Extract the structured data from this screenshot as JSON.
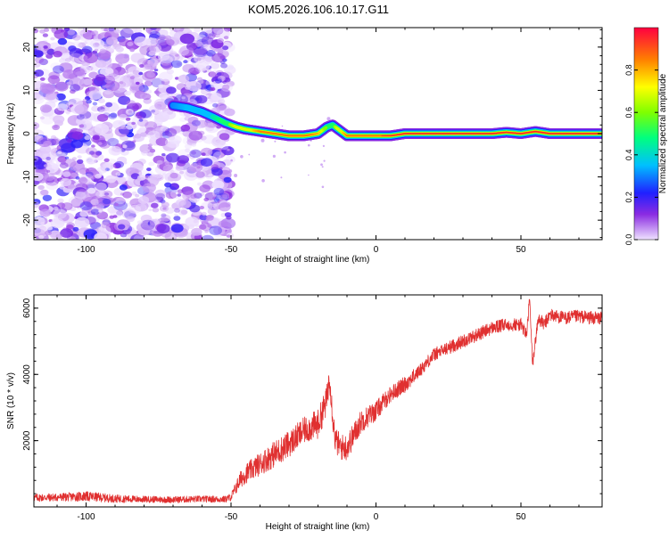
{
  "page_title": "KOM5.2026.106.10.17.G11",
  "chart_data": [
    {
      "id": "spectrogram",
      "type": "heatmap",
      "title": "KOM5.2026.106.10.17.G11",
      "xlabel": "Height of straight line (km)",
      "ylabel": "Frequency (Hz)",
      "xlim": [
        -118,
        78
      ],
      "ylim": [
        -24.5,
        24.5
      ],
      "xticks": [
        -100,
        -50,
        0,
        50
      ],
      "xtick_labels": [
        "-100",
        "-50",
        "0",
        "50"
      ],
      "yticks": [
        -20,
        -10,
        0,
        10,
        20
      ],
      "ytick_labels": [
        "-20",
        "-10",
        "0",
        "10",
        "20"
      ],
      "noise_region_x": [
        -118,
        -52
      ],
      "ridge": {
        "x": [
          -70,
          -65,
          -60,
          -55,
          -52,
          -48,
          -45,
          -40,
          -35,
          -30,
          -25,
          -20,
          -17,
          -15,
          -13,
          -10,
          -5,
          0,
          5,
          10,
          20,
          30,
          40,
          45,
          50,
          55,
          60,
          70,
          78
        ],
        "y": [
          6.5,
          6.0,
          5.0,
          3.5,
          2.5,
          1.5,
          1.0,
          0.5,
          0.0,
          -0.5,
          -0.5,
          0.0,
          1.5,
          2.0,
          1.0,
          -0.5,
          -0.5,
          -0.5,
          -0.5,
          0.0,
          0.0,
          0.0,
          0.0,
          0.3,
          0.0,
          0.5,
          0.0,
          0.0,
          0.0
        ],
        "amplitude": [
          0.3,
          0.35,
          0.35,
          0.45,
          0.55,
          0.7,
          0.7,
          0.85,
          0.85,
          0.88,
          0.88,
          0.8,
          0.55,
          0.55,
          0.7,
          0.85,
          0.9,
          0.9,
          0.95,
          0.97,
          0.97,
          0.97,
          0.97,
          0.95,
          0.97,
          0.97,
          0.97,
          0.97,
          0.97
        ]
      },
      "colorbar": {
        "label": "Normalized spectral amplitude",
        "range": [
          0.0,
          1.0
        ],
        "ticks": [
          0.0,
          0.2,
          0.4,
          0.6,
          0.8
        ],
        "tick_labels": [
          "0.0",
          "0.2",
          "0.4",
          "0.6",
          "0.8"
        ]
      }
    },
    {
      "id": "snr",
      "type": "line",
      "xlabel": "Height of straight line (km)",
      "ylabel": "SNR (10 * v/v)",
      "xlim": [
        -118,
        78
      ],
      "ylim": [
        0,
        6400
      ],
      "xticks": [
        -100,
        -50,
        0,
        50
      ],
      "xtick_labels": [
        "-100",
        "-50",
        "0",
        "50"
      ],
      "yticks": [
        2000,
        4000,
        6000
      ],
      "ytick_labels": [
        "2000",
        "4000",
        "6000"
      ],
      "color": "#e03030",
      "series": [
        {
          "name": "SNR",
          "x": [
            -118,
            -110,
            -100,
            -90,
            -80,
            -70,
            -60,
            -52,
            -50,
            -47,
            -45,
            -40,
            -35,
            -30,
            -25,
            -20,
            -17,
            -16,
            -15,
            -14,
            -12,
            -10,
            -5,
            0,
            5,
            10,
            15,
            20,
            25,
            30,
            35,
            40,
            45,
            50,
            52,
            53,
            54,
            55,
            56,
            58,
            60,
            65,
            70,
            75,
            78
          ],
          "y": [
            280,
            290,
            320,
            250,
            230,
            220,
            240,
            230,
            300,
            800,
            1000,
            1300,
            1600,
            1900,
            2300,
            2500,
            3200,
            4000,
            2800,
            2000,
            1800,
            1800,
            2600,
            2900,
            3400,
            3700,
            4100,
            4600,
            4800,
            5000,
            5200,
            5400,
            5500,
            5500,
            5200,
            6300,
            4300,
            5000,
            5700,
            5500,
            5800,
            5700,
            5750,
            5700,
            5700
          ],
          "noise_amplitude": [
            120,
            120,
            150,
            120,
            100,
            100,
            100,
            100,
            120,
            250,
            300,
            350,
            400,
            400,
            400,
            450,
            450,
            450,
            400,
            400,
            400,
            400,
            350,
            300,
            250,
            250,
            200,
            200,
            200,
            200,
            200,
            200,
            200,
            200,
            200,
            200,
            200,
            200,
            200,
            200,
            200,
            200,
            200,
            200,
            200
          ]
        }
      ]
    }
  ]
}
